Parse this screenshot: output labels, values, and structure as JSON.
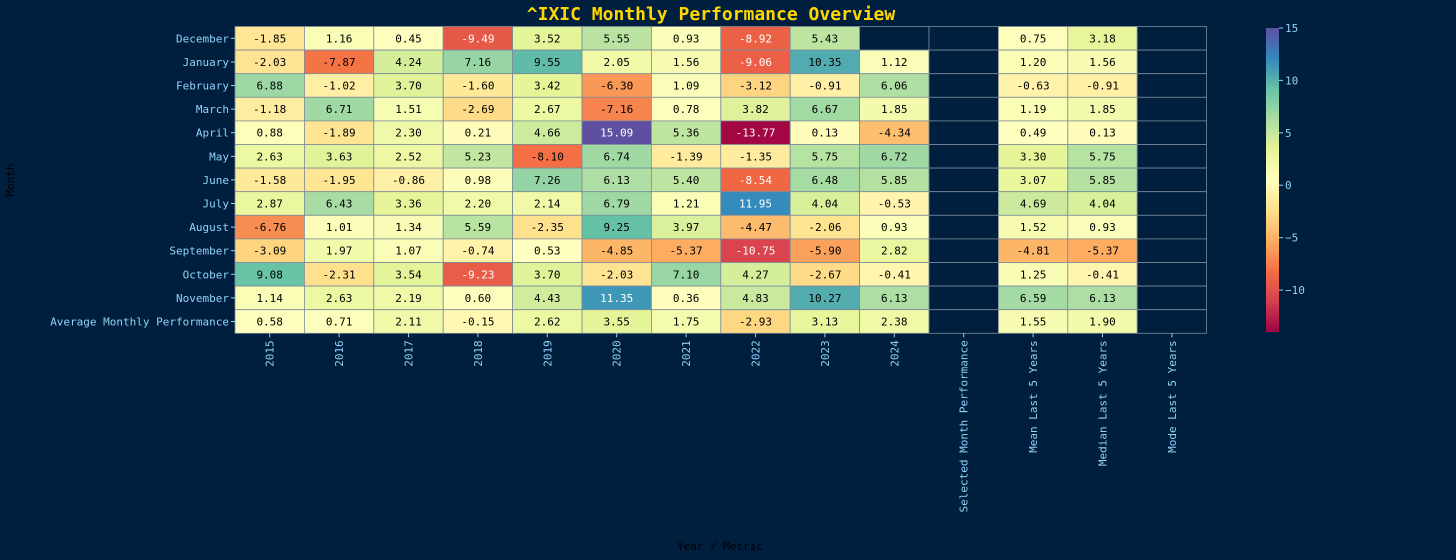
{
  "chart_data": {
    "type": "heatmap",
    "title": "^IXIC Monthly Performance Overview",
    "xlabel": "Year / Metric",
    "ylabel": "Month",
    "rows": [
      "December",
      "January",
      "February",
      "March",
      "April",
      "May",
      "June",
      "July",
      "August",
      "September",
      "October",
      "November",
      "Average Monthly Performance"
    ],
    "columns": [
      "2015",
      "2016",
      "2017",
      "2018",
      "2019",
      "2020",
      "2021",
      "2022",
      "2023",
      "2024",
      "Selected Month Performance",
      "Mean Last 5 Years",
      "Median Last 5 Years",
      "Mode Last 5 Years"
    ],
    "values": [
      [
        -1.85,
        1.16,
        0.45,
        -9.49,
        3.52,
        5.55,
        0.93,
        -8.92,
        5.43,
        null,
        null,
        0.75,
        3.18,
        null
      ],
      [
        -2.03,
        -7.87,
        4.24,
        7.16,
        9.55,
        2.05,
        1.56,
        -9.06,
        10.35,
        1.12,
        null,
        1.2,
        1.56,
        null
      ],
      [
        6.88,
        -1.02,
        3.7,
        -1.6,
        3.42,
        -6.3,
        1.09,
        -3.12,
        -0.91,
        6.06,
        null,
        -0.63,
        -0.91,
        null
      ],
      [
        -1.18,
        6.71,
        1.51,
        -2.69,
        2.67,
        -7.16,
        0.78,
        3.82,
        6.67,
        1.85,
        null,
        1.19,
        1.85,
        null
      ],
      [
        0.88,
        -1.89,
        2.3,
        0.21,
        4.66,
        15.09,
        5.36,
        -13.77,
        0.13,
        -4.34,
        null,
        0.49,
        0.13,
        null
      ],
      [
        2.63,
        3.63,
        2.52,
        5.23,
        -8.1,
        6.74,
        -1.39,
        -1.35,
        5.75,
        6.72,
        null,
        3.3,
        5.75,
        null
      ],
      [
        -1.58,
        -1.95,
        -0.86,
        0.98,
        7.26,
        6.13,
        5.4,
        -8.54,
        6.48,
        5.85,
        null,
        3.07,
        5.85,
        null
      ],
      [
        2.87,
        6.43,
        3.36,
        2.2,
        2.14,
        6.79,
        1.21,
        11.95,
        4.04,
        -0.53,
        null,
        4.69,
        4.04,
        null
      ],
      [
        -6.76,
        1.01,
        1.34,
        5.59,
        -2.35,
        9.25,
        3.97,
        -4.47,
        -2.06,
        0.93,
        null,
        1.52,
        0.93,
        null
      ],
      [
        -3.09,
        1.97,
        1.07,
        -0.74,
        0.53,
        -4.85,
        -5.37,
        -10.75,
        -5.9,
        2.82,
        null,
        -4.81,
        -5.37,
        null
      ],
      [
        9.08,
        -2.31,
        3.54,
        -9.23,
        3.7,
        -2.03,
        7.1,
        4.27,
        -2.67,
        -0.41,
        null,
        1.25,
        -0.41,
        null
      ],
      [
        1.14,
        2.63,
        2.19,
        0.6,
        4.43,
        11.35,
        0.36,
        4.83,
        10.27,
        6.13,
        null,
        6.59,
        6.13,
        null
      ],
      [
        0.58,
        0.71,
        2.11,
        -0.15,
        2.62,
        3.55,
        1.75,
        -2.93,
        3.13,
        2.38,
        null,
        1.55,
        1.9,
        null
      ]
    ],
    "value_range": [
      -14,
      15
    ],
    "colorbar_ticks": [
      "15",
      "10",
      "5",
      "0",
      "−5",
      "−10"
    ],
    "colorbar_tick_values": [
      15,
      10,
      5,
      0,
      -5,
      -10
    ],
    "colormap": "Spectral",
    "grid": true
  },
  "colors": {
    "background": "#001f3f",
    "title": "#ffd700",
    "tick_label": "#8fd3f7",
    "axis_label": "#000000",
    "grid_line": "#7a8a99",
    "cell_text_dark": "#000000",
    "cell_text_light": "#ffffff"
  }
}
